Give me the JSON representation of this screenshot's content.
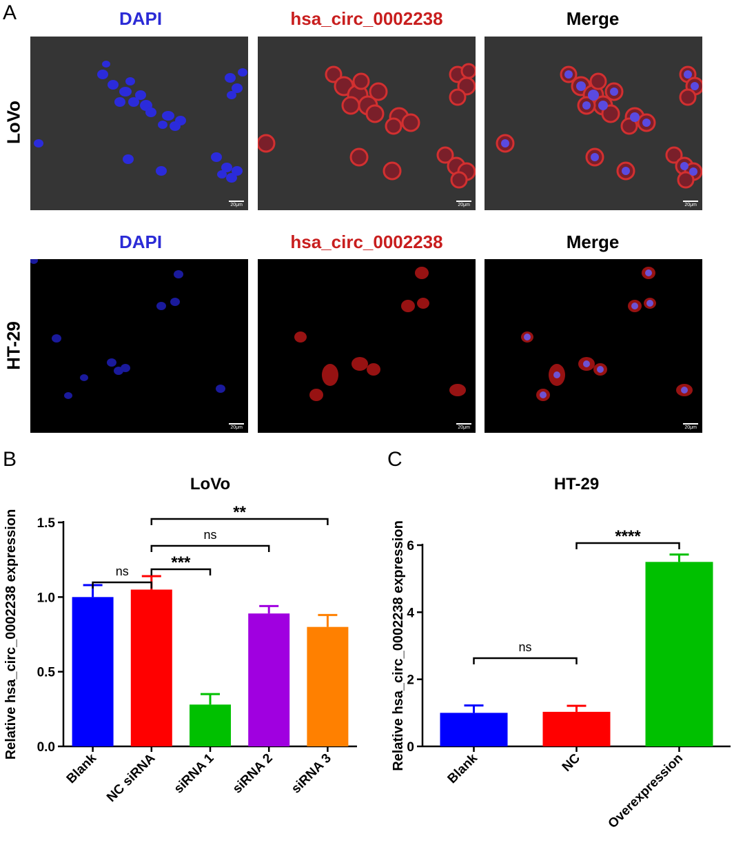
{
  "panel_a": {
    "letter": "A",
    "columns": [
      {
        "label": "DAPI",
        "color": "#2b2bd6"
      },
      {
        "label": "hsa_circ_0002238",
        "color": "#c81e1e"
      },
      {
        "label": "Merge",
        "color": "#000000"
      }
    ],
    "rows": [
      {
        "label": "LoVo",
        "background": "#353535"
      },
      {
        "label": "HT-29",
        "background": "#000000"
      }
    ],
    "scale_bar": "20μm"
  },
  "panel_b": {
    "letter": "B"
  },
  "panel_c": {
    "letter": "C"
  },
  "chart_data": [
    {
      "type": "bar",
      "title": "LoVo",
      "ylabel": "Relative hsa_circ_0002238 expression",
      "xlabel": "",
      "categories": [
        "Blank",
        "NC siRNA",
        "siRNA 1",
        "siRNA 2",
        "siRNA 3"
      ],
      "values": [
        1.0,
        1.05,
        0.28,
        0.89,
        0.8
      ],
      "errors": [
        0.08,
        0.09,
        0.07,
        0.05,
        0.08
      ],
      "colors": [
        "#0000ff",
        "#ff0000",
        "#00c000",
        "#a000e0",
        "#ff8000"
      ],
      "ylim": [
        0,
        1.5
      ],
      "yticks": [
        "0.0",
        "0.5",
        "1.0",
        "1.5"
      ],
      "ytick_values": [
        0,
        0.5,
        1.0,
        1.5
      ],
      "significance": [
        {
          "from": 0,
          "to": 1,
          "label": "ns"
        },
        {
          "from": 1,
          "to": 2,
          "label": "***"
        },
        {
          "from": 1,
          "to": 3,
          "label": "ns"
        },
        {
          "from": 1,
          "to": 4,
          "label": "**"
        }
      ]
    },
    {
      "type": "bar",
      "title": "HT-29",
      "ylabel": "Relative hsa_circ_0002238 expression",
      "xlabel": "",
      "categories": [
        "Blank",
        "NC",
        "Overexpression"
      ],
      "values": [
        1.0,
        1.03,
        5.5
      ],
      "errors": [
        0.22,
        0.18,
        0.22
      ],
      "colors": [
        "#0000ff",
        "#ff0000",
        "#00c000"
      ],
      "ylim": [
        0,
        6
      ],
      "yticks": [
        "0",
        "2",
        "4",
        "6"
      ],
      "ytick_values": [
        0,
        2,
        4,
        6
      ],
      "significance": [
        {
          "from": 0,
          "to": 1,
          "label": "ns"
        },
        {
          "from": 1,
          "to": 2,
          "label": "****"
        }
      ]
    }
  ]
}
